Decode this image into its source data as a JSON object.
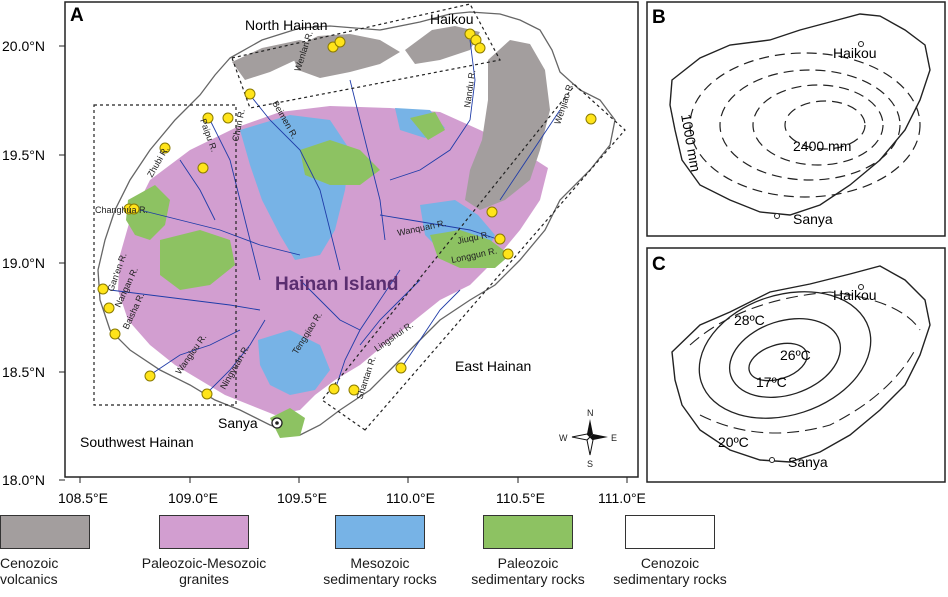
{
  "panels": {
    "a_label": "A",
    "b_label": "B",
    "c_label": "C"
  },
  "axes": {
    "x_ticks": [
      "108.5°E",
      "109.0°E",
      "109.5°E",
      "110.0°E",
      "110.5°E",
      "111.0°E"
    ],
    "y_ticks": [
      "20.0°N",
      "19.5°N",
      "19.0°N",
      "18.5°N",
      "18.0°N"
    ]
  },
  "regions": {
    "north": "North Hainan",
    "east": "East Hainan",
    "southwest": "Southwest Hainan",
    "island": "Hainan Island"
  },
  "cities": {
    "haikou": "Haikou",
    "sanya": "Sanya"
  },
  "rivers": {
    "wenlan": "Wenlan R.",
    "nandu": "Nandu R.",
    "wenjiao": "Wenjiao R.",
    "chun": "Chun R.",
    "beimen": "Beimen R.",
    "paipu": "Paipu R.",
    "zhubi": "Zhubi R.",
    "changhua": "Changhua R.",
    "ganen": "Gan'en R.",
    "nangan": "Nangan R.",
    "baisha": "Baisha R.",
    "wanglou": "Wanglou R.",
    "ningyuan": "Ningyuan R.",
    "tengqiao": "Tengqiao R.",
    "shantan": "Shantan R.",
    "lingshui": "Lingshui R.",
    "wanquan": "Wanquan R.",
    "jiuqu": "Jiuqu R.",
    "longgun": "Longgun R."
  },
  "compass": {
    "n": "N",
    "s": "S",
    "e": "E",
    "w": "W"
  },
  "precip": {
    "max": "2400 mm",
    "min": "1000 mm",
    "city_n": "Haikou",
    "city_s": "Sanya"
  },
  "temp": {
    "t28": "28ºC",
    "t26": "26ºC",
    "t17": "17ºC",
    "t20": "20ºC",
    "city_n": "Haikou",
    "city_s": "Sanya"
  },
  "legend": [
    {
      "line1": "Cenozoic",
      "line2": "volcanics",
      "color": "#a39e9e"
    },
    {
      "line1": "Paleozoic-Mesozoic",
      "line2": "granites",
      "color": "#d29ed0"
    },
    {
      "line1": "Mesozoic",
      "line2": "sedimentary rocks",
      "color": "#77b3e6"
    },
    {
      "line1": "Paleozoic",
      "line2": "sedimentary rocks",
      "color": "#8dc262"
    },
    {
      "line1": "Cenozoic",
      "line2": "sedimentary rocks",
      "color": "#ffffff"
    }
  ],
  "colors": {
    "sample_site": "#ffe41a",
    "river": "#1f3ca8",
    "coast": "#666666"
  }
}
